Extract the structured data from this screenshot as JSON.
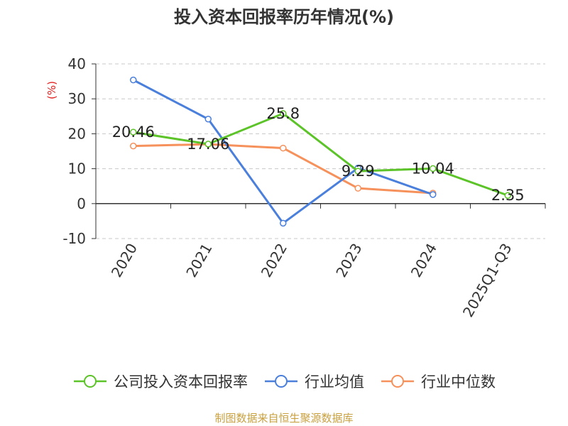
{
  "chart_data": {
    "type": "line",
    "title": "投入资本回报率历年情况(%)",
    "ylabel": "(%)",
    "categories": [
      "2020",
      "2021",
      "2022",
      "2023",
      "2024",
      "2025Q1-Q3"
    ],
    "ylim": [
      -10,
      40
    ],
    "yticks": [
      -10,
      0,
      10,
      20,
      30,
      40
    ],
    "grid": true,
    "legend_position": "bottom",
    "series": [
      {
        "name": "公司投入资本回报率",
        "color": "#5cc328",
        "values": [
          20.46,
          17.06,
          25.8,
          9.29,
          10.04,
          2.35
        ],
        "labels": [
          "20.46",
          "17.06",
          "25.8",
          "9.29",
          "10.04",
          "2.35"
        ]
      },
      {
        "name": "行业均值",
        "color": "#4a7fdc",
        "values": [
          35.4,
          24.2,
          -5.6,
          10.2,
          2.6,
          null
        ]
      },
      {
        "name": "行业中位数",
        "color": "#f6915c",
        "values": [
          16.5,
          17.0,
          15.9,
          4.4,
          3.0,
          null
        ]
      }
    ]
  },
  "source": "制图数据来自恒生聚源数据库"
}
